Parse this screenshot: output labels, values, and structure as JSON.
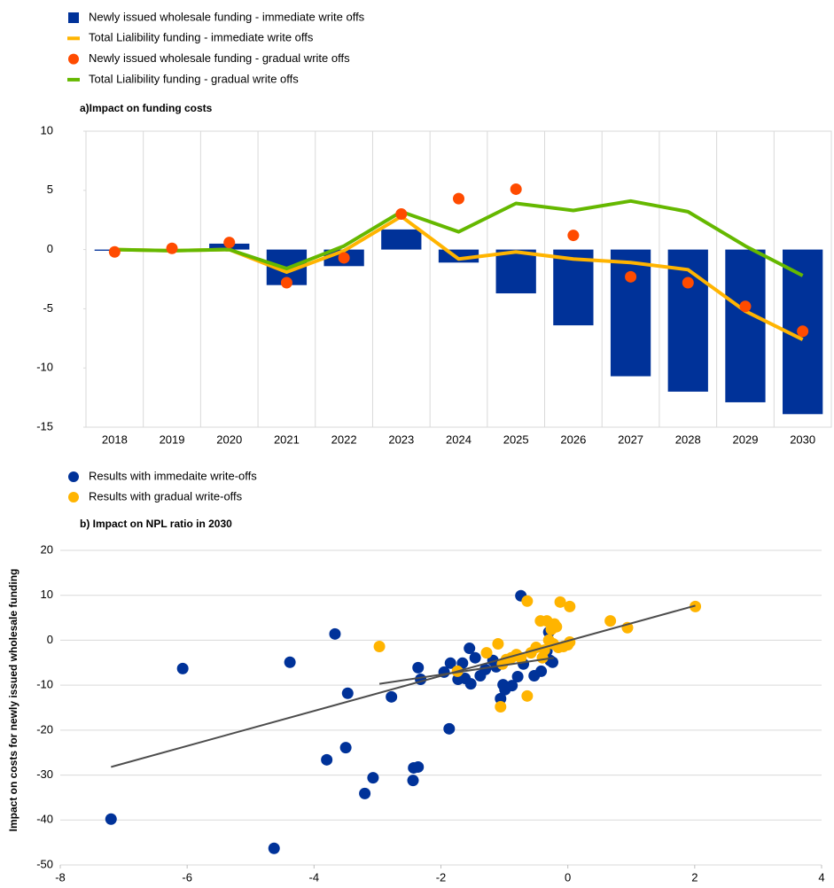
{
  "chart_data": [
    {
      "type": "bar",
      "title": "a)Impact on funding costs",
      "categories": [
        "2018",
        "2019",
        "2020",
        "2021",
        "2022",
        "2023",
        "2024",
        "2025",
        "2026",
        "2027",
        "2028",
        "2029",
        "2030"
      ],
      "series": [
        {
          "name": "Newly issued wholesale funding - immediate write offs",
          "type": "bar",
          "color": "#003299",
          "values": [
            -0.1,
            0,
            0.5,
            -3.0,
            -1.4,
            1.7,
            -1.1,
            -3.7,
            -6.4,
            -10.7,
            -12.0,
            -12.9,
            -13.9
          ]
        },
        {
          "name": "Total Lialibility funding - immediate write offs",
          "type": "line",
          "color": "#ffb400",
          "values": [
            0.0,
            -0.1,
            0.0,
            -1.9,
            -0.1,
            2.8,
            -0.8,
            -0.2,
            -0.8,
            -1.1,
            -1.7,
            -5.2,
            -7.6
          ]
        },
        {
          "name": "Newly issued wholesale funding - gradual write offs",
          "type": "scatter",
          "color": "#ff4b00",
          "values": [
            -0.2,
            0.1,
            0.6,
            -2.8,
            -0.7,
            3.0,
            4.3,
            5.1,
            1.2,
            -2.3,
            -2.8,
            -4.8,
            -6.9
          ]
        },
        {
          "name": "Total Lialibility funding - gradual write offs",
          "type": "line",
          "color": "#65b800",
          "values": [
            0.0,
            -0.1,
            0.0,
            -1.6,
            0.3,
            3.2,
            1.5,
            3.9,
            3.3,
            4.1,
            3.2,
            0.3,
            -2.2
          ]
        }
      ],
      "ylim": [
        -15,
        10
      ],
      "yticks": [
        -15,
        -10,
        -5,
        0,
        5,
        10
      ],
      "grid": "vertical"
    },
    {
      "type": "scatter",
      "title": "b) Impact on NPL ratio in 2030",
      "ylabel": "Impact on costs for newly issued wholesale funding",
      "series": [
        {
          "name": "Results with immedaite write-offs",
          "color": "#003299",
          "x": [
            -7.2,
            -6.07,
            -4.63,
            -3.67,
            -4.38,
            -3.47,
            -3.8,
            -3.5,
            -3.07,
            -3.2,
            -2.78,
            -2.44,
            -2.43,
            -2.36,
            -2.36,
            -2.32,
            -1.87,
            -1.95,
            -1.85,
            -1.66,
            -1.55,
            -1.73,
            -1.62,
            -1.53,
            -1.46,
            -1.38,
            -1.3,
            -1.18,
            -1.13,
            -1.06,
            -1.02,
            -0.99,
            -0.88,
            -0.79,
            -0.74,
            -0.7,
            -0.53,
            -0.42,
            -0.33,
            -0.28,
            -0.24,
            -0.3
          ],
          "values": [
            -39.8,
            -6.3,
            -46.3,
            1.4,
            -4.9,
            -11.8,
            -26.6,
            -23.9,
            -30.6,
            -34.1,
            -12.6,
            -31.2,
            -28.4,
            -28.2,
            -6.1,
            -8.7,
            -19.7,
            -7.1,
            -5.1,
            -5.1,
            -1.8,
            -8.7,
            -8.5,
            -9.7,
            -3.9,
            -7.9,
            -6.5,
            -4.5,
            -5.9,
            -13.0,
            -9.9,
            -11.0,
            -10.1,
            -8.1,
            9.9,
            -5.3,
            -7.9,
            -6.9,
            -2.4,
            -4.5,
            -4.9,
            1.8
          ]
        },
        {
          "name": "Results with gradual write-offs",
          "color": "#ffb400",
          "x": [
            -2.97,
            -1.74,
            -1.28,
            -1.1,
            -1.06,
            -1.03,
            -0.97,
            -0.89,
            -0.81,
            -0.74,
            -0.64,
            -0.64,
            -0.58,
            -0.5,
            -0.43,
            -0.4,
            -0.37,
            -0.33,
            -0.3,
            -0.26,
            -0.23,
            -0.21,
            -0.18,
            -0.15,
            -0.12,
            -0.07,
            0.0,
            0.03,
            0.03,
            0.67,
            0.94,
            2.01
          ],
          "values": [
            -1.4,
            -6.9,
            -2.8,
            -0.8,
            -14.8,
            -5.3,
            -4.3,
            -3.9,
            -3.2,
            -3.9,
            -12.4,
            8.7,
            -2.8,
            -1.6,
            4.3,
            -3.9,
            -2.2,
            4.3,
            0,
            2.4,
            -0.8,
            3.6,
            3.0,
            -1.6,
            8.5,
            -1.4,
            -1.0,
            7.5,
            -0.4,
            4.3,
            2.8,
            7.5
          ]
        }
      ],
      "trendlines": [
        {
          "color": "#4d4d4d",
          "x": [
            -7.2,
            2.01
          ],
          "values": [
            -28.2,
            7.7
          ]
        },
        {
          "color": "#4d4d4d",
          "x": [
            -2.97,
            -0.22
          ],
          "values": [
            -9.7,
            -3.9
          ]
        }
      ],
      "xlim": [
        -8,
        4
      ],
      "xticks": [
        -8,
        -6,
        -4,
        -2,
        0,
        2,
        4
      ],
      "ylim": [
        -50,
        20
      ],
      "yticks": [
        -50,
        -40,
        -30,
        -20,
        -10,
        0,
        10,
        20
      ],
      "grid": "horizontal"
    }
  ]
}
